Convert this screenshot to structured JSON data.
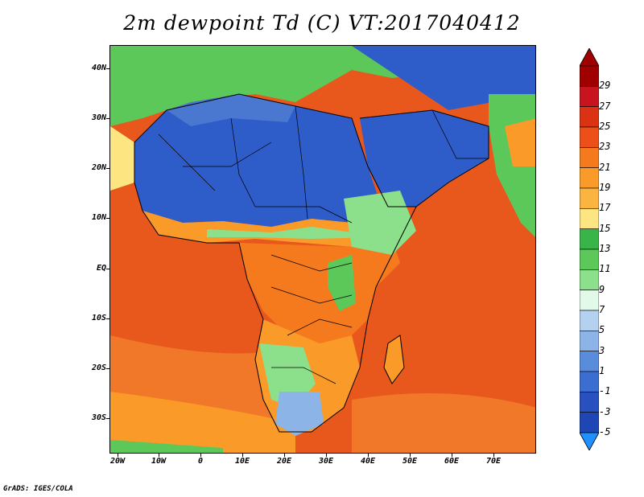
{
  "title": "2m dewpoint Td (C) VT:2017040412",
  "footer": "GrADS: IGES/COLA",
  "lat_labels": [
    "40N",
    "30N",
    "20N",
    "10N",
    "EQ",
    "10S",
    "20S",
    "30S"
  ],
  "lon_labels": [
    "20W",
    "10W",
    "0",
    "10E",
    "20E",
    "30E",
    "40E",
    "50E",
    "60E",
    "70E"
  ],
  "colorbar": {
    "labels": [
      "29",
      "27",
      "25",
      "23",
      "21",
      "19",
      "17",
      "15",
      "13",
      "11",
      "9",
      "7",
      "5",
      "3",
      "1",
      "-1",
      "-3",
      "-5"
    ],
    "colors": [
      "#a00000",
      "#c8141e",
      "#dc3214",
      "#ec5018",
      "#f57a1e",
      "#fa9a28",
      "#fcb441",
      "#fde682",
      "#39b449",
      "#5cc85a",
      "#8ce08c",
      "#e2f8e8",
      "#b4d2f0",
      "#8cb4e6",
      "#5a8cdc",
      "#3c6ed2",
      "#2850be",
      "#1e46b4"
    ]
  },
  "colors": {
    "ocean": "#e8581d",
    "ocean_warm": "#f07828",
    "sahara_dry": "#2e5cc8",
    "desert_mid": "#4a78d0",
    "moist_green": "#5cc85a",
    "coast_orange": "#fa9a28",
    "border": "#000000"
  }
}
